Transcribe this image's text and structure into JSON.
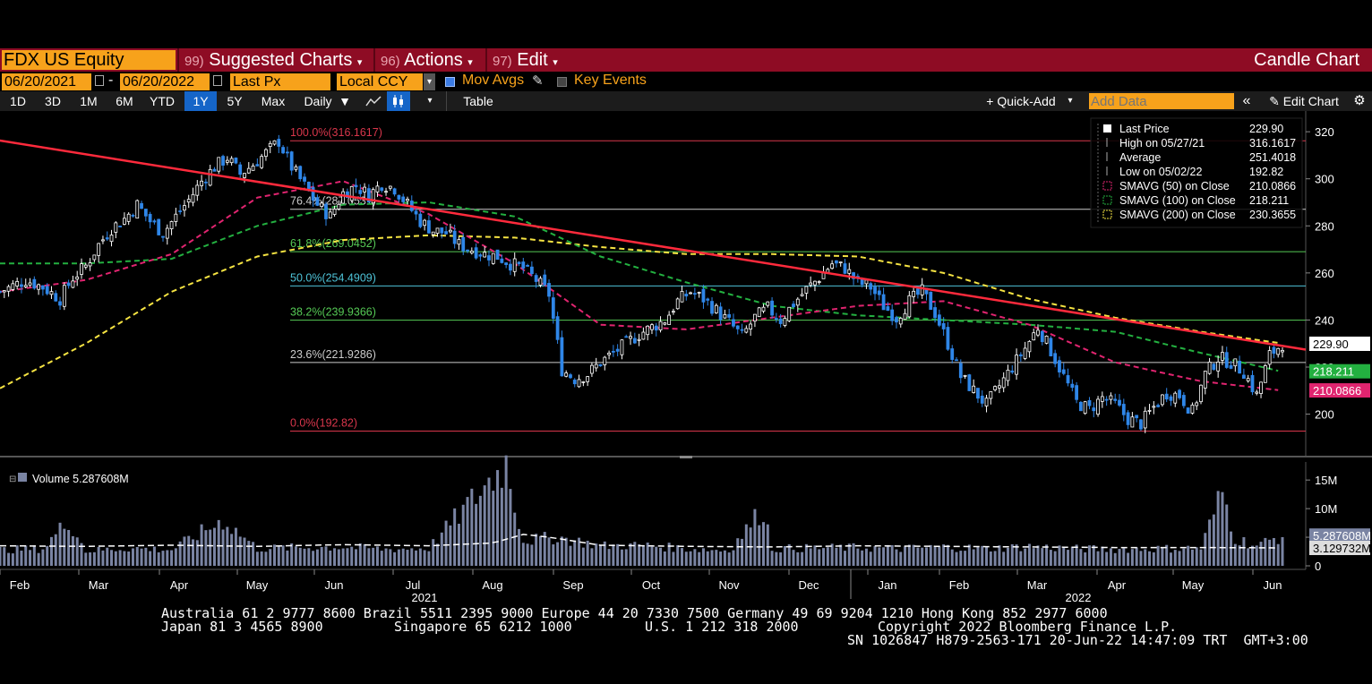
{
  "topbar": {
    "security": "FDX US Equity",
    "menus": [
      {
        "num": "99)",
        "label": "Suggested Charts"
      },
      {
        "num": "96)",
        "label": "Actions"
      },
      {
        "num": "97)",
        "label": "Edit"
      }
    ],
    "chart_type": "Candle Chart"
  },
  "row2": {
    "start_date": "06/20/2021",
    "end_date": "06/20/2022",
    "dash": "-",
    "field": "Last Px",
    "currency": "Local CCY",
    "mov_avgs": "Mov Avgs",
    "key_events": "Key Events"
  },
  "row3": {
    "ranges": [
      "1D",
      "3D",
      "1M",
      "6M",
      "YTD",
      "1Y",
      "5Y",
      "Max"
    ],
    "selected": "1Y",
    "period": "Daily",
    "table": "Table",
    "quick_add": "+ Quick-Add",
    "add_data_placeholder": "Add Data",
    "edit_chart": "Edit Chart"
  },
  "colors": {
    "up": "#ffffff",
    "down": "#2f86e8",
    "sma50": "#e0246f",
    "sma100": "#23b040",
    "sma200": "#f5e342",
    "trend": "#ff2a3c",
    "panel_bg": "#8e0c24",
    "field_bg": "#f7a21b"
  },
  "chart_data": {
    "type": "candlestick",
    "price_axis": {
      "min": 185,
      "max": 325,
      "ticks": [
        200,
        220,
        240,
        260,
        280,
        300,
        320
      ]
    },
    "volume_axis": {
      "min": 0,
      "max": 18,
      "ticks": [
        0,
        5,
        10,
        15
      ],
      "tick_labels": [
        "0",
        "5M",
        "10M",
        "15M"
      ]
    },
    "months": [
      "Feb",
      "Mar",
      "Apr",
      "May",
      "Jun",
      "Jul",
      "Aug",
      "Sep",
      "Oct",
      "Nov",
      "Dec",
      "Jan",
      "Feb",
      "Mar",
      "Apr",
      "May",
      "Jun"
    ],
    "years": [
      "2021",
      "2022"
    ],
    "fib_levels": [
      {
        "label": "100.0%(316.1617)",
        "value": 316.1617,
        "color": "#d8364b"
      },
      {
        "label": "76.4%(287.0531)",
        "value": 287.0531,
        "color": "#cccccc"
      },
      {
        "label": "61.8%(269.0452)",
        "value": 269.0452,
        "color": "#55c955"
      },
      {
        "label": "50.0%(254.4909)",
        "value": 254.4909,
        "color": "#4ec3d8"
      },
      {
        "label": "38.2%(239.9366)",
        "value": 239.9366,
        "color": "#55c955"
      },
      {
        "label": "23.6%(221.9286)",
        "value": 221.9286,
        "color": "#cccccc"
      },
      {
        "label": "0.0%(192.82)",
        "value": 192.82,
        "color": "#d8364b"
      }
    ],
    "legend": [
      {
        "label": "Last Price",
        "value": "229.90",
        "marker": "box"
      },
      {
        "label": "High on 05/27/21",
        "value": "316.1617",
        "marker": "high"
      },
      {
        "label": "Average",
        "value": "251.4018",
        "marker": "avg"
      },
      {
        "label": "Low on 05/02/22",
        "value": "192.82",
        "marker": "low"
      },
      {
        "label": "SMAVG (50)  on Close",
        "value": "210.0866",
        "marker": "sma50"
      },
      {
        "label": "SMAVG (100)  on Close",
        "value": "218.211",
        "marker": "sma100"
      },
      {
        "label": "SMAVG (200)  on Close",
        "value": "230.3655",
        "marker": "sma200"
      }
    ],
    "last_price": {
      "value": 229.9,
      "label": "229.90"
    },
    "sma50_last": {
      "value": 210.0866,
      "label": "210.0866"
    },
    "sma100_last": {
      "value": 218.211,
      "label": "218.211"
    },
    "volume_label": "Volume 5.287608M",
    "volume_last": {
      "value": 5.287608,
      "label": "5.287608M"
    },
    "volume_avg_last": {
      "value": 3.129732,
      "label": "3.129732M"
    },
    "price_path": [
      [
        0,
        252
      ],
      [
        6,
        257
      ],
      [
        10,
        254
      ],
      [
        14,
        249
      ],
      [
        17,
        258
      ],
      [
        20,
        263
      ],
      [
        23,
        272
      ],
      [
        26,
        279
      ],
      [
        29,
        283
      ],
      [
        32,
        289
      ],
      [
        35,
        282
      ],
      [
        38,
        277
      ],
      [
        41,
        284
      ],
      [
        44,
        291
      ],
      [
        47,
        299
      ],
      [
        50,
        305
      ],
      [
        53,
        309
      ],
      [
        56,
        302
      ],
      [
        59,
        306
      ],
      [
        62,
        311
      ],
      [
        65,
        316
      ],
      [
        68,
        305
      ],
      [
        71,
        297
      ],
      [
        74,
        289
      ],
      [
        77,
        284
      ],
      [
        80,
        294
      ],
      [
        83,
        297
      ],
      [
        86,
        293
      ],
      [
        89,
        298
      ],
      [
        92,
        296
      ],
      [
        95,
        289
      ],
      [
        98,
        282
      ],
      [
        101,
        278
      ],
      [
        104,
        277
      ],
      [
        107,
        272
      ],
      [
        110,
        270
      ],
      [
        113,
        268
      ],
      [
        116,
        267
      ],
      [
        119,
        264
      ],
      [
        122,
        262
      ],
      [
        125,
        257
      ],
      [
        128,
        251
      ],
      [
        131,
        219
      ],
      [
        134,
        215
      ],
      [
        137,
        217
      ],
      [
        140,
        222
      ],
      [
        143,
        226
      ],
      [
        146,
        230
      ],
      [
        149,
        234
      ],
      [
        152,
        237
      ],
      [
        155,
        240
      ],
      [
        158,
        248
      ],
      [
        161,
        252
      ],
      [
        164,
        249
      ],
      [
        167,
        244
      ],
      [
        170,
        239
      ],
      [
        173,
        233
      ],
      [
        176,
        241
      ],
      [
        179,
        245
      ],
      [
        182,
        240
      ],
      [
        185,
        247
      ],
      [
        188,
        253
      ],
      [
        191,
        258
      ],
      [
        194,
        264
      ],
      [
        197,
        262
      ],
      [
        200,
        256
      ],
      [
        203,
        254
      ],
      [
        206,
        246
      ],
      [
        209,
        241
      ],
      [
        212,
        248
      ],
      [
        215,
        252
      ],
      [
        218,
        243
      ],
      [
        221,
        230
      ],
      [
        224,
        216
      ],
      [
        227,
        210
      ],
      [
        230,
        204
      ],
      [
        233,
        212
      ],
      [
        236,
        220
      ],
      [
        239,
        228
      ],
      [
        242,
        237
      ],
      [
        245,
        227
      ],
      [
        248,
        216
      ],
      [
        251,
        205
      ],
      [
        254,
        202
      ],
      [
        257,
        207
      ],
      [
        260,
        204
      ],
      [
        263,
        198
      ],
      [
        266,
        196
      ],
      [
        269,
        203
      ],
      [
        272,
        209
      ],
      [
        275,
        208
      ],
      [
        278,
        201
      ],
      [
        281,
        217
      ],
      [
        284,
        224
      ],
      [
        287,
        222
      ],
      [
        290,
        218
      ],
      [
        293,
        208
      ],
      [
        296,
        225
      ],
      [
        299,
        230
      ]
    ],
    "volume_path": [
      [
        0,
        2.8
      ],
      [
        10,
        3.0
      ],
      [
        16,
        8.0
      ],
      [
        20,
        2.6
      ],
      [
        30,
        3.1
      ],
      [
        40,
        2.8
      ],
      [
        52,
        8.0
      ],
      [
        60,
        3.0
      ],
      [
        70,
        3.2
      ],
      [
        80,
        3.3
      ],
      [
        90,
        2.9
      ],
      [
        100,
        3.1
      ],
      [
        118,
        18.0
      ],
      [
        122,
        4.4
      ],
      [
        130,
        5.0
      ],
      [
        140,
        3.5
      ],
      [
        150,
        3.6
      ],
      [
        160,
        3.0
      ],
      [
        170,
        2.7
      ],
      [
        178,
        10.0
      ],
      [
        180,
        3.0
      ],
      [
        190,
        3.1
      ],
      [
        200,
        3.2
      ],
      [
        210,
        3.0
      ],
      [
        220,
        3.3
      ],
      [
        230,
        3.0
      ],
      [
        240,
        3.4
      ],
      [
        250,
        3.0
      ],
      [
        260,
        2.9
      ],
      [
        270,
        3.0
      ],
      [
        280,
        3.1
      ],
      [
        285,
        13.0
      ],
      [
        288,
        4.8
      ],
      [
        293,
        3.5
      ],
      [
        299,
        5.3
      ]
    ],
    "volume_avg_path": [
      [
        0,
        3.5
      ],
      [
        20,
        3.4
      ],
      [
        40,
        3.6
      ],
      [
        60,
        3.4
      ],
      [
        80,
        3.7
      ],
      [
        100,
        3.5
      ],
      [
        115,
        4.0
      ],
      [
        122,
        5.5
      ],
      [
        128,
        5.0
      ],
      [
        140,
        3.6
      ],
      [
        160,
        3.4
      ],
      [
        180,
        3.3
      ],
      [
        200,
        3.5
      ],
      [
        220,
        3.4
      ],
      [
        240,
        3.3
      ],
      [
        260,
        3.2
      ],
      [
        280,
        3.2
      ],
      [
        299,
        3.13
      ]
    ],
    "trendline": [
      [
        -30,
        325
      ],
      [
        299,
        229
      ]
    ],
    "sma200_path": [
      [
        0,
        211
      ],
      [
        20,
        230
      ],
      [
        40,
        252
      ],
      [
        60,
        267
      ],
      [
        80,
        274
      ],
      [
        100,
        276
      ],
      [
        120,
        275
      ],
      [
        140,
        271
      ],
      [
        160,
        268
      ],
      [
        180,
        268
      ],
      [
        200,
        267
      ],
      [
        220,
        260
      ],
      [
        240,
        249
      ],
      [
        260,
        241
      ],
      [
        280,
        235
      ],
      [
        299,
        230
      ]
    ],
    "sma100_path": [
      [
        0,
        264
      ],
      [
        20,
        264
      ],
      [
        40,
        266
      ],
      [
        60,
        280
      ],
      [
        80,
        289
      ],
      [
        100,
        290
      ],
      [
        120,
        284
      ],
      [
        140,
        267
      ],
      [
        160,
        256
      ],
      [
        180,
        246
      ],
      [
        200,
        242
      ],
      [
        220,
        240
      ],
      [
        240,
        238
      ],
      [
        260,
        235
      ],
      [
        280,
        226
      ],
      [
        299,
        218
      ]
    ],
    "sma50_path": [
      [
        0,
        252
      ],
      [
        20,
        257
      ],
      [
        40,
        268
      ],
      [
        60,
        292
      ],
      [
        80,
        299
      ],
      [
        100,
        285
      ],
      [
        120,
        264
      ],
      [
        140,
        238
      ],
      [
        160,
        236
      ],
      [
        180,
        241
      ],
      [
        200,
        246
      ],
      [
        220,
        248
      ],
      [
        240,
        238
      ],
      [
        260,
        222
      ],
      [
        280,
        214
      ],
      [
        299,
        210
      ]
    ]
  },
  "footer": {
    "line1": "Australia 61 2 9777 8600 Brazil 5511 2395 9000 Europe 44 20 7330 7500 Germany 49 69 9204 1210 Hong Kong 852 2977 6000",
    "line2a": "Japan 81 3 4565 8900",
    "line2b": "Singapore 65 6212 1000",
    "line2c": "U.S. 1 212 318 2000",
    "line2d": "Copyright 2022 Bloomberg Finance L.P.",
    "line3": "SN 1026847 H879-2563-171 20-Jun-22 14:47:09 TRT  GMT+3:00"
  }
}
